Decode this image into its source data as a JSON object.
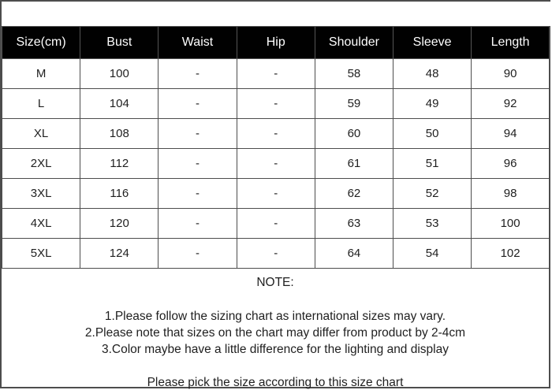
{
  "table": {
    "headers": [
      "Size(cm)",
      "Bust",
      "Waist",
      "Hip",
      "Shoulder",
      "Sleeve",
      "Length"
    ],
    "rows": [
      [
        "M",
        "100",
        "-",
        "-",
        "58",
        "48",
        "90"
      ],
      [
        "L",
        "104",
        "-",
        "-",
        "59",
        "49",
        "92"
      ],
      [
        "XL",
        "108",
        "-",
        "-",
        "60",
        "50",
        "94"
      ],
      [
        "2XL",
        "112",
        "-",
        "-",
        "61",
        "51",
        "96"
      ],
      [
        "3XL",
        "116",
        "-",
        "-",
        "62",
        "52",
        "98"
      ],
      [
        "4XL",
        "120",
        "-",
        "-",
        "63",
        "53",
        "100"
      ],
      [
        "5XL",
        "124",
        "-",
        "-",
        "64",
        "54",
        "102"
      ]
    ]
  },
  "note": {
    "title": "NOTE:",
    "lines": [
      "1.Please follow the sizing chart as international sizes may vary.",
      "2.Please note that sizes on the chart may differ from product by 2-4cm",
      "3.Color maybe have a little difference for the lighting and display"
    ],
    "footer": "Please pick the size according to this size chart"
  },
  "colors": {
    "header_bg": "#010101",
    "header_text": "#ffffff",
    "border": "#4d4d4d",
    "text": "#1f1f1f",
    "background": "#ffffff"
  }
}
